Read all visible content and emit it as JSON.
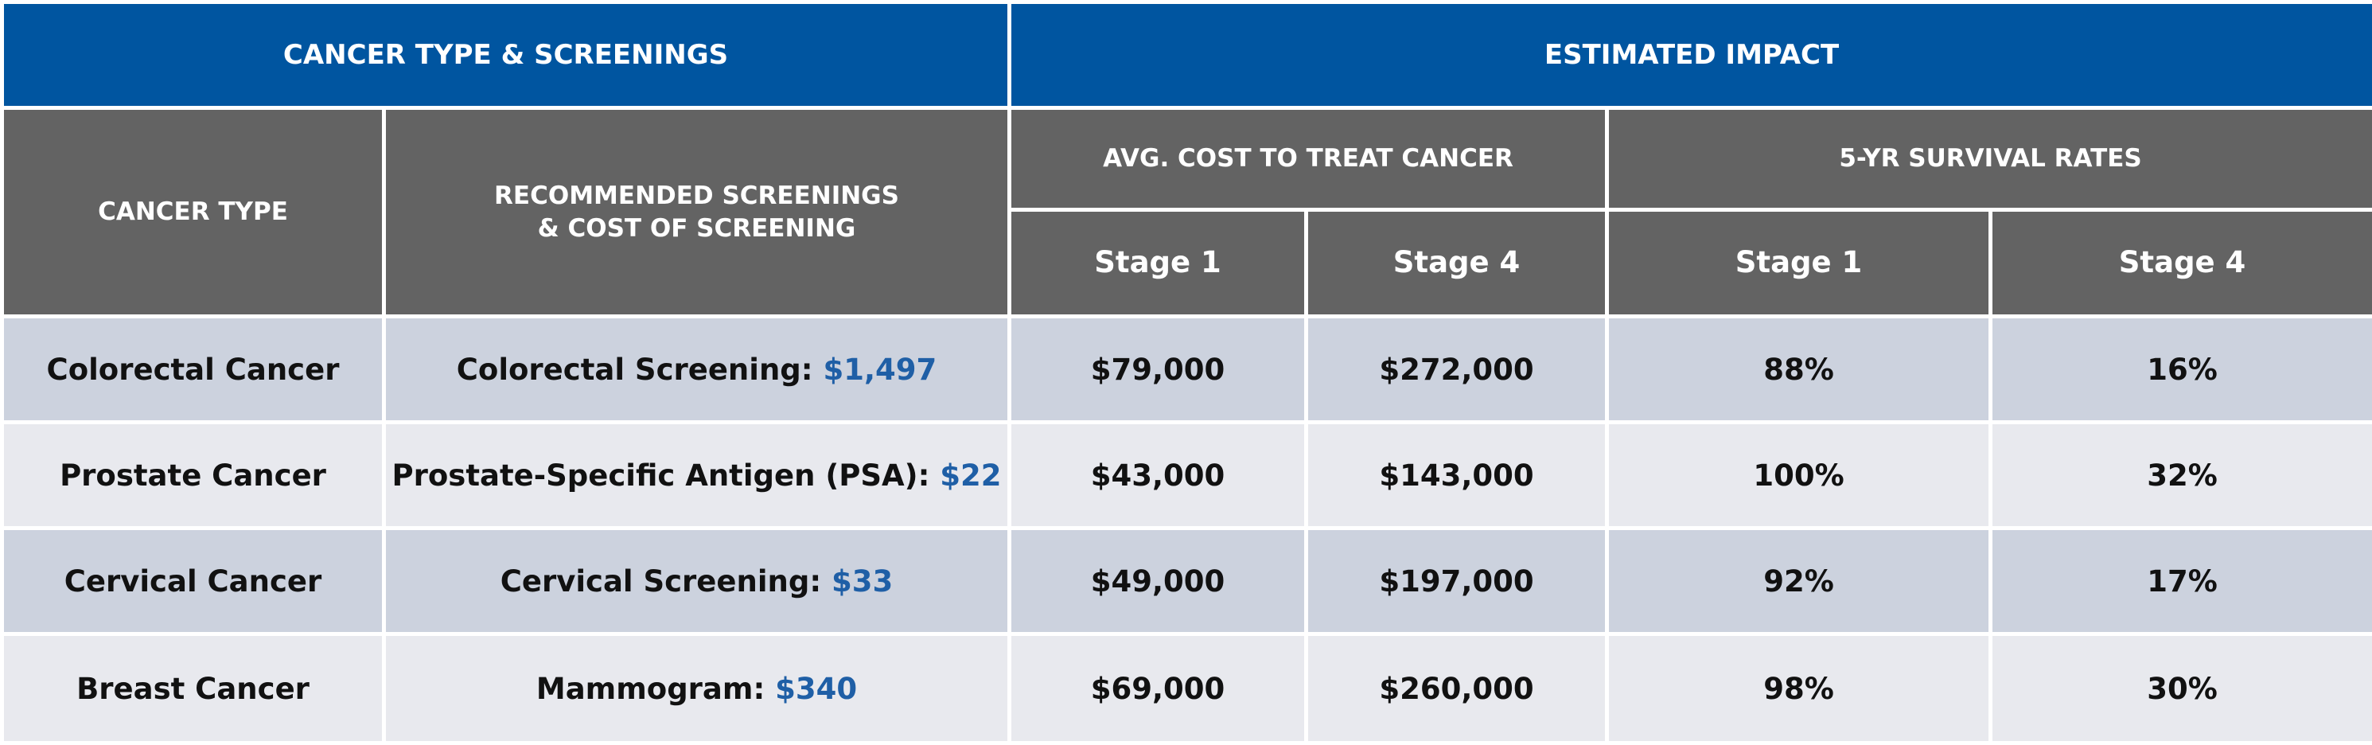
{
  "header": {
    "groups": [
      "CANCER TYPE & SCREENINGS",
      "ESTIMATED IMPACT"
    ],
    "columns": {
      "cancer_type": "CANCER TYPE",
      "screenings": "RECOMMENDED SCREENINGS\n& COST OF SCREENING",
      "avg_cost": "AVG. COST TO TREAT CANCER",
      "survival": "5-YR SURVIVAL RATES",
      "stages": [
        "Stage 1",
        "Stage 4",
        "Stage 1",
        "Stage 4"
      ]
    }
  },
  "table": {
    "rows": [
      [
        "Colorectal Cancer",
        "Colorectal Screening:",
        "$1,497",
        "$79,000",
        "$272,000",
        "88%",
        "16%"
      ],
      [
        "Prostate Cancer",
        "Prostate-Specific Antigen (PSA):",
        "$22",
        "$43,000",
        "$143,000",
        "100%",
        "32%"
      ],
      [
        "Cervical Cancer",
        "Cervical Screening:",
        "$33",
        "$49,000",
        "$197,000",
        "92%",
        "17%"
      ],
      [
        "Breast Cancer",
        "Mammogram:",
        "$340",
        "$69,000",
        "$260,000",
        "98%",
        "30%"
      ]
    ]
  }
}
